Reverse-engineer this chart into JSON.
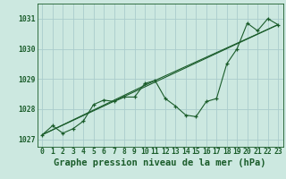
{
  "title": "Graphe pression niveau de la mer (hPa)",
  "xlabel_hours": [
    0,
    1,
    2,
    3,
    4,
    5,
    6,
    7,
    8,
    9,
    10,
    11,
    12,
    13,
    14,
    15,
    16,
    17,
    18,
    19,
    20,
    21,
    22,
    23
  ],
  "main_line": [
    1027.15,
    1027.45,
    1027.2,
    1027.35,
    1027.6,
    1028.15,
    1028.3,
    1028.25,
    1028.4,
    1028.4,
    1028.85,
    1028.95,
    1028.35,
    1028.1,
    1027.8,
    1027.75,
    1028.25,
    1028.35,
    1029.5,
    1030.0,
    1030.85,
    1030.6,
    1031.0,
    1030.8
  ],
  "trend_line1_x": [
    0,
    23
  ],
  "trend_line1_y": [
    1027.15,
    1030.8
  ],
  "trend_line2_x": [
    0,
    11,
    23
  ],
  "trend_line2_y": [
    1027.15,
    1028.95,
    1030.8
  ],
  "ylim": [
    1026.75,
    1031.5
  ],
  "yticks": [
    1027,
    1028,
    1029,
    1030,
    1031
  ],
  "xlim": [
    -0.5,
    23.5
  ],
  "bg_color": "#cce8e0",
  "grid_color": "#aacccc",
  "line_color": "#1a5c2a",
  "marker": "+",
  "title_fontsize": 7.5,
  "tick_fontsize": 5.8
}
